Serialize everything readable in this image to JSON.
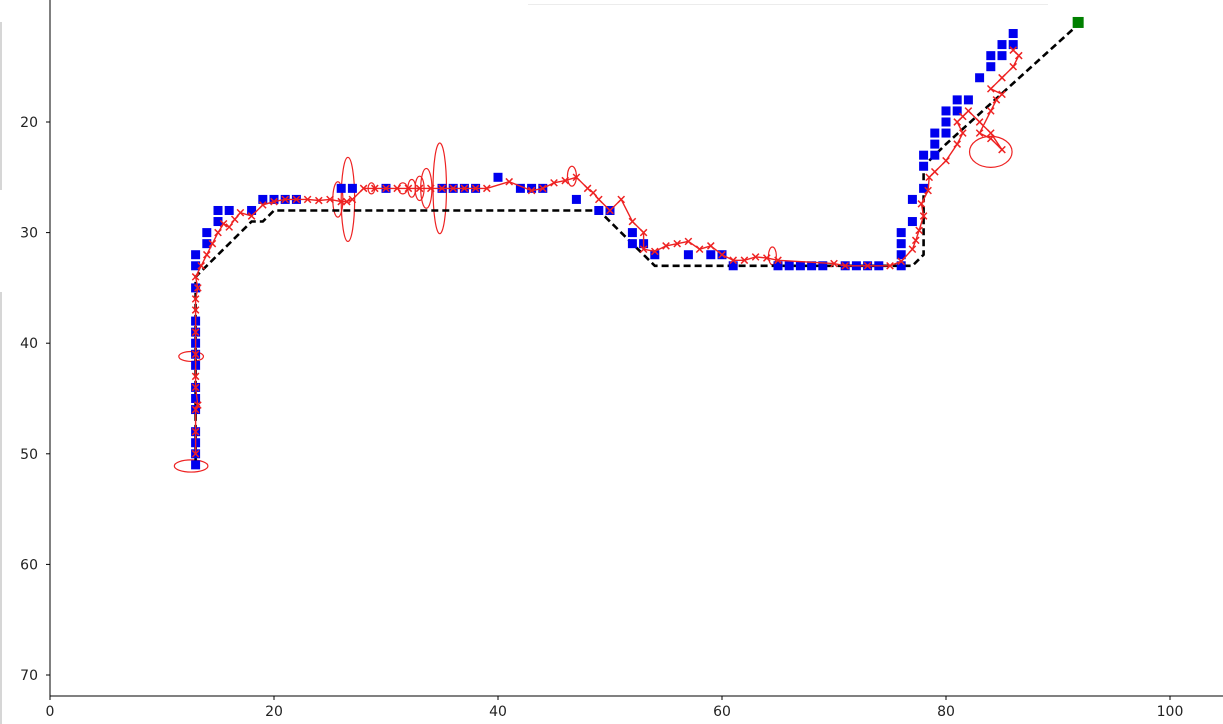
{
  "chart_data": {
    "type": "scatter",
    "title": "",
    "xlabel": "",
    "ylabel": "",
    "xlim": [
      0,
      105
    ],
    "ylim": [
      72,
      1
    ],
    "y_inverted": true,
    "grid": false,
    "x_ticks": [
      "0",
      "20",
      "40",
      "60",
      "80",
      "100"
    ],
    "y_ticks": [
      "20",
      "30",
      "40",
      "50",
      "60",
      "70"
    ],
    "series": [
      {
        "style": "dashed-line",
        "color": "#000000",
        "points": [
          [
            13,
            51
          ],
          [
            13,
            34
          ],
          [
            18,
            29
          ],
          [
            19,
            29
          ],
          [
            20,
            28
          ],
          [
            49,
            28
          ],
          [
            54,
            33
          ],
          [
            77,
            33
          ],
          [
            78,
            32
          ],
          [
            78,
            24
          ],
          [
            80,
            22
          ],
          [
            92,
            11
          ]
        ]
      },
      {
        "style": "square-markers",
        "color": "#0000ee",
        "points": [
          [
            13,
            51
          ],
          [
            13,
            50
          ],
          [
            13,
            49
          ],
          [
            13,
            48
          ],
          [
            13,
            46
          ],
          [
            13,
            45
          ],
          [
            13,
            44
          ],
          [
            13,
            42
          ],
          [
            13,
            41
          ],
          [
            13,
            40
          ],
          [
            13,
            39
          ],
          [
            13,
            38
          ],
          [
            13,
            35
          ],
          [
            13,
            33
          ],
          [
            13,
            32
          ],
          [
            14,
            31
          ],
          [
            14,
            30
          ],
          [
            15,
            29
          ],
          [
            15,
            28
          ],
          [
            16,
            28
          ],
          [
            18,
            28
          ],
          [
            19,
            27
          ],
          [
            20,
            27
          ],
          [
            21,
            27
          ],
          [
            22,
            27
          ],
          [
            26,
            26
          ],
          [
            27,
            26
          ],
          [
            30,
            26
          ],
          [
            35,
            26
          ],
          [
            36,
            26
          ],
          [
            37,
            26
          ],
          [
            38,
            26
          ],
          [
            40,
            25
          ],
          [
            42,
            26
          ],
          [
            43,
            26
          ],
          [
            44,
            26
          ],
          [
            47,
            27
          ],
          [
            49,
            28
          ],
          [
            50,
            28
          ],
          [
            52,
            30
          ],
          [
            52,
            31
          ],
          [
            53,
            31
          ],
          [
            54,
            32
          ],
          [
            57,
            32
          ],
          [
            59,
            32
          ],
          [
            60,
            32
          ],
          [
            61,
            33
          ],
          [
            65,
            33
          ],
          [
            66,
            33
          ],
          [
            67,
            33
          ],
          [
            68,
            33
          ],
          [
            69,
            33
          ],
          [
            71,
            33
          ],
          [
            72,
            33
          ],
          [
            73,
            33
          ],
          [
            74,
            33
          ],
          [
            76,
            33
          ],
          [
            76,
            32
          ],
          [
            76,
            31
          ],
          [
            76,
            30
          ],
          [
            77,
            29
          ],
          [
            77,
            27
          ],
          [
            78,
            26
          ],
          [
            78,
            24
          ],
          [
            78,
            23
          ],
          [
            79,
            23
          ],
          [
            79,
            22
          ],
          [
            79,
            21
          ],
          [
            80,
            21
          ],
          [
            80,
            20
          ],
          [
            80,
            19
          ],
          [
            81,
            19
          ],
          [
            81,
            18
          ],
          [
            82,
            18
          ],
          [
            83,
            16
          ],
          [
            84,
            15
          ],
          [
            84,
            14
          ],
          [
            85,
            13
          ],
          [
            85,
            14
          ],
          [
            86,
            12
          ],
          [
            86,
            13
          ]
        ]
      },
      {
        "style": "x-markers-line",
        "color": "#ee2222",
        "points": [
          [
            13,
            50
          ],
          [
            13,
            48
          ],
          [
            13,
            46
          ],
          [
            13.2,
            45.6
          ],
          [
            13,
            44
          ],
          [
            13,
            43
          ],
          [
            13,
            41
          ],
          [
            13,
            39
          ],
          [
            13,
            37
          ],
          [
            13,
            36
          ],
          [
            13.2,
            35
          ],
          [
            13,
            34
          ],
          [
            13.5,
            33
          ],
          [
            14,
            32
          ],
          [
            14.5,
            31
          ],
          [
            15,
            30
          ],
          [
            15.5,
            29.2
          ],
          [
            16,
            29.5
          ],
          [
            16.5,
            28.8
          ],
          [
            17,
            28.2
          ],
          [
            18,
            28.5
          ],
          [
            19,
            27.5
          ],
          [
            20,
            27.2
          ],
          [
            21,
            27
          ],
          [
            22,
            27
          ],
          [
            23,
            27
          ],
          [
            24,
            27.1
          ],
          [
            25,
            27
          ],
          [
            26,
            27.2
          ],
          [
            26.5,
            27.2
          ],
          [
            27,
            27
          ],
          [
            28,
            26
          ],
          [
            29,
            26
          ],
          [
            30,
            26
          ],
          [
            31,
            26
          ],
          [
            32,
            26
          ],
          [
            33,
            26
          ],
          [
            34,
            26
          ],
          [
            35,
            26
          ],
          [
            36,
            26
          ],
          [
            37,
            26
          ],
          [
            38,
            26
          ],
          [
            39,
            26
          ],
          [
            41,
            25.4
          ],
          [
            43,
            26.2
          ],
          [
            44,
            26
          ],
          [
            45,
            25.5
          ],
          [
            46,
            25.3
          ],
          [
            47,
            25
          ],
          [
            48,
            26
          ],
          [
            48.5,
            26.4
          ],
          [
            49,
            27
          ],
          [
            50,
            28
          ],
          [
            51,
            27
          ],
          [
            52,
            29
          ],
          [
            53,
            30
          ],
          [
            53,
            31.5
          ],
          [
            54,
            31.7
          ],
          [
            55,
            31.2
          ],
          [
            56,
            31
          ],
          [
            57,
            30.8
          ],
          [
            58,
            31.5
          ],
          [
            59,
            31.2
          ],
          [
            60,
            32
          ],
          [
            61,
            32.5
          ],
          [
            62,
            32.5
          ],
          [
            63,
            32.2
          ],
          [
            64,
            32.3
          ],
          [
            65,
            32.5
          ],
          [
            70,
            32.8
          ],
          [
            71,
            33
          ],
          [
            73,
            33
          ],
          [
            75,
            33
          ],
          [
            76,
            32.6
          ],
          [
            77,
            31.5
          ],
          [
            77.3,
            30.7
          ],
          [
            77.6,
            29.8
          ],
          [
            78,
            28.5
          ],
          [
            77.8,
            27.4
          ],
          [
            78.4,
            26.2
          ],
          [
            78.5,
            25
          ],
          [
            79,
            24.5
          ],
          [
            80,
            23.5
          ],
          [
            81,
            22
          ],
          [
            81.5,
            21
          ],
          [
            81,
            20
          ],
          [
            81.5,
            19.5
          ],
          [
            82,
            19
          ],
          [
            83,
            20
          ],
          [
            84,
            21
          ],
          [
            85,
            22.5
          ],
          [
            84,
            21.5
          ],
          [
            83,
            21
          ],
          [
            84,
            19
          ],
          [
            84.5,
            18
          ],
          [
            85,
            17.5
          ],
          [
            84,
            17
          ],
          [
            85,
            16
          ],
          [
            86,
            15
          ],
          [
            86.5,
            14
          ],
          [
            86,
            13.5
          ]
        ]
      }
    ],
    "uncertainty_ellipses": [
      {
        "cx": 12.6,
        "cy": 41.2,
        "rx": 1.1,
        "ry": 0.45
      },
      {
        "cx": 12.6,
        "cy": 51.1,
        "rx": 1.5,
        "ry": 0.55
      },
      {
        "cx": 25.7,
        "cy": 27.0,
        "rx": 0.45,
        "ry": 1.6
      },
      {
        "cx": 26.6,
        "cy": 27.0,
        "rx": 0.6,
        "ry": 3.8
      },
      {
        "cx": 28.7,
        "cy": 26.0,
        "rx": 0.3,
        "ry": 0.5
      },
      {
        "cx": 31.5,
        "cy": 26.0,
        "rx": 0.4,
        "ry": 0.5
      },
      {
        "cx": 32.3,
        "cy": 26.0,
        "rx": 0.35,
        "ry": 0.8
      },
      {
        "cx": 33.0,
        "cy": 26.0,
        "rx": 0.4,
        "ry": 1.1
      },
      {
        "cx": 33.6,
        "cy": 26.0,
        "rx": 0.5,
        "ry": 1.8
      },
      {
        "cx": 34.8,
        "cy": 26.0,
        "rx": 0.6,
        "ry": 4.1
      },
      {
        "cx": 46.6,
        "cy": 24.9,
        "rx": 0.4,
        "ry": 0.9
      },
      {
        "cx": 64.5,
        "cy": 32.1,
        "rx": 0.35,
        "ry": 0.8
      },
      {
        "cx": 84.0,
        "cy": 22.7,
        "rx": 1.9,
        "ry": 1.4
      }
    ],
    "endpoint": {
      "x": 91.8,
      "y": 11,
      "color": "#008000"
    }
  }
}
